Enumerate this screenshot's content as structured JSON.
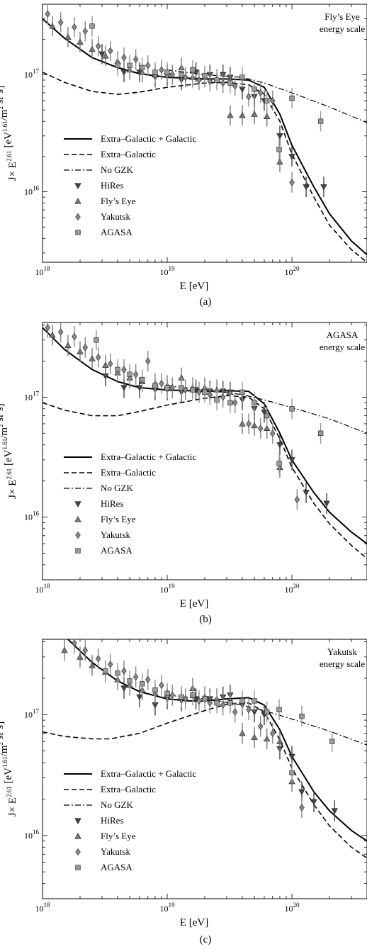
{
  "chart_data": [
    {
      "type": "line",
      "caption": "(a)",
      "note_lines": [
        "Fly’s Eye",
        "energy scale"
      ],
      "xlabel": "E  [eV]",
      "ylabel": "J× E^2.61  [eV^1.61/m^2 sr s]",
      "x_scale": "log",
      "y_scale": "log",
      "xlim": [
        1e+18,
        4e+20
      ],
      "ylim": [
        2500000000000000.0,
        4e+17
      ],
      "x_ticks": [
        1e+18,
        1e+19,
        1e+20
      ],
      "y_ticks": [
        1e+16,
        1e+17
      ],
      "series": [
        {
          "name": "Extra–Galactic + Galactic",
          "style": "solid",
          "x": [
            1e+18,
            1.5e+18,
            2.5e+18,
            4e+18,
            6e+18,
            1e+19,
            2e+19,
            3e+19,
            4.5e+19,
            6e+19,
            8e+19,
            1e+20,
            1.5e+20,
            2e+20,
            3e+20,
            4e+20
          ],
          "y": [
            3e+17,
            2.05e+17,
            1.4e+17,
            1.15e+17,
            1.02e+17,
            9.5e+16,
            9.2e+16,
            9.2e+16,
            9e+16,
            7.8e+16,
            4.6e+16,
            2.5e+16,
            1.1e+16,
            6500000000000000.0,
            3800000000000000.0,
            2900000000000000.0
          ]
        },
        {
          "name": "Extra–Galactic",
          "style": "dashed",
          "x": [
            1e+18,
            1.5e+18,
            2.5e+18,
            4e+18,
            6e+18,
            1e+19,
            2e+19,
            3e+19,
            4.5e+19,
            6e+19,
            8e+19,
            1e+20,
            1.5e+20,
            2e+20,
            3e+20,
            4e+20
          ],
          "y": [
            1.05e+17,
            8.6e+16,
            7.2e+16,
            6.8e+16,
            7.1e+16,
            7.8e+16,
            8.5e+16,
            8.6e+16,
            8.2e+16,
            6.8e+16,
            4e+16,
            2.1e+16,
            9000000000000000.0,
            5200000000000000.0,
            3200000000000000.0,
            2500000000000000.0
          ]
        },
        {
          "name": "No GZK",
          "style": "dashdot",
          "x": [
            1e+19,
            2e+19,
            4e+19,
            6e+19,
            1e+20,
            2e+20,
            4e+20
          ],
          "y": [
            1.1e+17,
            1e+17,
            9.5e+16,
            8.5e+16,
            7e+16,
            5.3e+16,
            3.9e+16
          ]
        }
      ],
      "points": [
        {
          "name": "HiRes",
          "marker": "triangle-down",
          "color": "#444444",
          "x": [
            3e+18,
            4.5e+18,
            6e+18,
            8e+18,
            1e+19,
            1.3e+19,
            1.7e+19,
            2.2e+19,
            2.8e+19,
            3.2e+19,
            4e+19,
            5e+19,
            6e+19,
            8e+19,
            1e+20,
            1.3e+20,
            1.8e+20
          ],
          "y": [
            1.5e+17,
            1.05e+17,
            1.05e+17,
            9.5e+16,
            9.8e+16,
            9e+16,
            1.05e+17,
            1e+17,
            1e+17,
            9.5e+16,
            7.5e+16,
            6.5e+16,
            6e+16,
            3e+16,
            2e+16,
            1.1e+16,
            1.1e+16
          ]
        },
        {
          "name": "Fly’s Eye",
          "marker": "triangle-up",
          "color": "#777777",
          "x": [
            1.2e+18,
            1.6e+18,
            2e+18,
            2.5e+18,
            3.2e+18,
            4e+18,
            5e+18,
            6.3e+18,
            8e+18,
            1e+19,
            1.3e+19,
            1.6e+19,
            2e+19,
            2.5e+19,
            3.2e+19,
            4e+19,
            5e+19,
            6.3e+19,
            8e+19
          ],
          "y": [
            2.6e+17,
            2.1e+17,
            1.9e+17,
            1.65e+17,
            1.45e+17,
            1.3e+17,
            1.1e+17,
            1.05e+17,
            1e+17,
            1e+17,
            1.15e+17,
            9.5e+16,
            9.5e+16,
            9.2e+16,
            4.5e+16,
            4.5e+16,
            4.6e+16,
            4.4e+16,
            1.8e+16
          ]
        },
        {
          "name": "Yakutsk",
          "marker": "diamond",
          "color": "#888888",
          "x": [
            1.1e+18,
            1.4e+18,
            1.8e+18,
            2.2e+18,
            2.8e+18,
            3.5e+18,
            4.5e+18,
            5.6e+18,
            7e+18,
            9e+18,
            1.1e+19,
            1.4e+19,
            1.8e+19,
            2.2e+19,
            2.8e+19,
            3.5e+19,
            4.5e+19,
            5.6e+19,
            7e+19,
            1e+20
          ],
          "y": [
            3.3e+17,
            2.8e+17,
            2.55e+17,
            2.35e+17,
            1.75e+17,
            1.6e+17,
            1.4e+17,
            1.35e+17,
            1.2e+17,
            1.1e+17,
            1e+17,
            9.5e+16,
            9e+16,
            8.8e+16,
            8.5e+16,
            8e+16,
            6.5e+16,
            7e+16,
            6e+16,
            1.2e+16
          ]
        },
        {
          "name": "AGASA",
          "marker": "square",
          "color": "#999999",
          "x": [
            2.5e+18,
            4e+18,
            5e+18,
            6.3e+18,
            8e+18,
            1e+19,
            1.3e+19,
            1.6e+19,
            2e+19,
            2.5e+19,
            3.2e+19,
            4e+19,
            5e+19,
            6.3e+19,
            7.9e+19,
            1e+20,
            1.7e+20
          ],
          "y": [
            2.6e+17,
            1.2e+17,
            1.2e+17,
            1.15e+17,
            1.05e+17,
            1.05e+17,
            1e+17,
            1.1e+17,
            9.8e+16,
            9e+16,
            8.5e+16,
            9.5e+16,
            7.5e+16,
            6e+16,
            2.3e+16,
            6.3e+16,
            4e+16
          ]
        }
      ]
    },
    {
      "type": "line",
      "caption": "(b)",
      "note_lines": [
        "AGASA",
        "energy scale"
      ],
      "xlabel": "E  [eV]",
      "ylabel": "J× E^2.61  [eV^1.61/m^2 sr s]",
      "x_scale": "log",
      "y_scale": "log",
      "xlim": [
        1e+18,
        4e+20
      ],
      "ylim": [
        3000000000000000.0,
        4.2e+17
      ],
      "x_ticks": [
        1e+18,
        1e+19,
        1e+20
      ],
      "y_ticks": [
        1e+16,
        1e+17
      ],
      "series": [
        {
          "name": "Extra–Galactic + Galactic",
          "style": "solid",
          "x": [
            1e+18,
            1.5e+18,
            2.5e+18,
            4e+18,
            6e+18,
            1e+19,
            2e+19,
            3e+19,
            4.5e+19,
            6e+19,
            8e+19,
            1e+20,
            1.5e+20,
            2e+20,
            3e+20,
            4e+20
          ],
          "y": [
            3.8e+17,
            2.5e+17,
            1.7e+17,
            1.35e+17,
            1.2e+17,
            1.15e+17,
            1.12e+17,
            1.13e+17,
            1.12e+17,
            8.8e+16,
            5e+16,
            3e+16,
            1.6e+16,
            1.1e+16,
            7500000000000000.0,
            6000000000000000.0
          ]
        },
        {
          "name": "Extra–Galactic",
          "style": "dashed",
          "x": [
            1e+18,
            1.5e+18,
            2.5e+18,
            4e+18,
            6e+18,
            1e+19,
            2e+19,
            3e+19,
            4.5e+19,
            6e+19,
            8e+19,
            1e+20,
            1.5e+20,
            2e+20,
            3e+20,
            4e+20
          ],
          "y": [
            9e+16,
            7.8e+16,
            7e+16,
            7e+16,
            7.6e+16,
            8.6e+16,
            9.8e+16,
            1.03e+17,
            1e+17,
            8e+16,
            4.5e+16,
            2.6e+16,
            1.3e+16,
            8800000000000000.0,
            5800000000000000.0,
            4500000000000000.0
          ]
        },
        {
          "name": "No GZK",
          "style": "dashdot",
          "x": [
            1e+19,
            2e+19,
            4e+19,
            6e+19,
            1e+20,
            2e+20,
            4e+20
          ],
          "y": [
            1.25e+17,
            1.15e+17,
            1.05e+17,
            9.5e+16,
            8.2e+16,
            6.6e+16,
            5e+16
          ]
        }
      ],
      "points": [
        {
          "name": "HiRes",
          "marker": "triangle-down",
          "color": "#444444",
          "x": [
            3.2e+18,
            4.5e+18,
            6e+18,
            8e+18,
            1e+19,
            1.3e+19,
            1.7e+19,
            2.2e+19,
            2.8e+19,
            3.2e+19,
            4e+19,
            5e+19,
            6e+19,
            8e+19,
            1e+20,
            1.3e+20,
            1.9e+20
          ],
          "y": [
            1.5e+17,
            1.2e+17,
            1.2e+17,
            1.15e+17,
            1.15e+17,
            1.1e+17,
            1.15e+17,
            1.12e+17,
            1.12e+17,
            1.1e+17,
            9.5e+16,
            8e+16,
            7.5e+16,
            4e+16,
            3e+16,
            1.6e+16,
            1.3e+16
          ]
        },
        {
          "name": "Fly’s Eye",
          "marker": "triangle-up",
          "color": "#777777",
          "x": [
            1.2e+18,
            1.6e+18,
            2e+18,
            2.5e+18,
            3.2e+18,
            4e+18,
            5e+18,
            6.3e+18,
            8e+18,
            1e+19,
            1.3e+19,
            1.6e+19,
            2e+19,
            2.5e+19,
            3.2e+19,
            4e+19,
            5e+19,
            6.3e+19,
            8e+19
          ],
          "y": [
            3.3e+17,
            2.7e+17,
            2.4e+17,
            2.1e+17,
            1.85e+17,
            1.6e+17,
            1.45e+17,
            1.35e+17,
            1.3e+17,
            1.25e+17,
            1.45e+17,
            1.2e+17,
            1.2e+17,
            1.15e+17,
            1.1e+17,
            6e+16,
            5.8e+16,
            5.5e+16,
            2.6e+16
          ]
        },
        {
          "name": "Yakutsk",
          "marker": "diamond",
          "color": "#888888",
          "x": [
            1.1e+18,
            1.4e+18,
            1.8e+18,
            2.2e+18,
            2.8e+18,
            3.5e+18,
            4.5e+18,
            5.6e+18,
            7e+18,
            9e+18,
            1.1e+19,
            1.4e+19,
            1.8e+19,
            2.2e+19,
            2.8e+19,
            3.5e+19,
            4.5e+19,
            5.6e+19,
            7e+19,
            1.1e+20
          ],
          "y": [
            3.8e+17,
            3.5e+17,
            3.2e+17,
            2.6e+17,
            2.15e+17,
            1.9e+17,
            1.7e+17,
            1.55e+17,
            2e+17,
            1.3e+17,
            1.2e+17,
            1.15e+17,
            1.1e+17,
            1.05e+17,
            1e+17,
            9e+16,
            6e+16,
            5.5e+16,
            5e+16,
            1.4e+16
          ]
        },
        {
          "name": "AGASA",
          "marker": "square",
          "color": "#999999",
          "x": [
            2.7e+18,
            4e+18,
            5e+18,
            6.3e+18,
            8e+18,
            1e+19,
            1.3e+19,
            1.6e+19,
            2e+19,
            2.5e+19,
            3.2e+19,
            4e+19,
            5e+19,
            6.3e+19,
            7.9e+19,
            1e+20,
            1.7e+20
          ],
          "y": [
            3e+17,
            1.7e+17,
            1.55e+17,
            1.4e+17,
            1.25e+17,
            1.2e+17,
            1.2e+17,
            1.15e+17,
            1.1e+17,
            9.5e+16,
            9e+16,
            1.1e+17,
            9e+16,
            7e+16,
            2.8e+16,
            8e+16,
            5e+16
          ]
        }
      ]
    },
    {
      "type": "line",
      "caption": "(c)",
      "note_lines": [
        "Yakutsk",
        "energy scale"
      ],
      "xlabel": "E  [eV]",
      "ylabel": "J× E^2.61  [eV^1.61/m^2 sr s]",
      "x_scale": "log",
      "y_scale": "log",
      "xlim": [
        1e+18,
        4e+20
      ],
      "ylim": [
        3000000000000000.0,
        4.2e+17
      ],
      "x_ticks": [
        1e+18,
        1e+19,
        1e+20
      ],
      "y_ticks": [
        1e+16,
        1e+17
      ],
      "series": [
        {
          "name": "Extra–Galactic + Galactic",
          "style": "solid",
          "x": [
            1.6e+18,
            2.5e+18,
            4e+18,
            6e+18,
            1e+19,
            1.5e+19,
            2e+19,
            3e+19,
            4.5e+19,
            6e+19,
            8e+19,
            1e+20,
            1.5e+20,
            2e+20,
            3e+20,
            4e+20
          ],
          "y": [
            4.2e+17,
            2.7e+17,
            1.9e+17,
            1.55e+17,
            1.35e+17,
            1.3e+17,
            1.3e+17,
            1.35e+17,
            1.38e+17,
            1.2e+17,
            7.5e+16,
            4.5e+16,
            2.3e+16,
            1.6e+16,
            1.1e+16,
            9000000000000000.0
          ]
        },
        {
          "name": "Extra–Galactic",
          "style": "dashed",
          "x": [
            1e+18,
            1.5e+18,
            2.5e+18,
            3.5e+18,
            6e+18,
            1e+19,
            2e+19,
            3e+19,
            4.5e+19,
            6e+19,
            8e+19,
            1e+20,
            1.5e+20,
            2e+20,
            3e+20,
            4e+20
          ],
          "y": [
            7.2e+16,
            6.6e+16,
            6.3e+16,
            6.3e+16,
            7e+16,
            8.5e+16,
            1.08e+17,
            1.22e+17,
            1.25e+17,
            1.05e+17,
            6.2e+16,
            3.6e+16,
            1.8e+16,
            1.2e+16,
            8000000000000000.0,
            6500000000000000.0
          ]
        },
        {
          "name": "No GZK",
          "style": "dashdot",
          "x": [
            1e+19,
            2e+19,
            4e+19,
            6e+19,
            1e+20,
            2e+20,
            4e+20
          ],
          "y": [
            1.45e+17,
            1.35e+17,
            1.2e+17,
            1.08e+17,
            9.2e+16,
            7.3e+16,
            5.6e+16
          ]
        }
      ],
      "points": [
        {
          "name": "HiRes",
          "marker": "triangle-down",
          "color": "#444444",
          "x": [
            4.5e+18,
            6e+18,
            8e+18,
            1e+19,
            1.3e+19,
            1.7e+19,
            2.2e+19,
            2.8e+19,
            3.2e+19,
            4e+19,
            5e+19,
            6e+19,
            8e+19,
            1e+20,
            1.2e+20,
            1.5e+20,
            2.2e+20
          ],
          "y": [
            1.65e+17,
            1.4e+17,
            1.2e+17,
            1.35e+17,
            1.3e+17,
            1.35e+17,
            1.35e+17,
            1.4e+17,
            1.45e+17,
            1.2e+17,
            1.05e+17,
            1e+17,
            5.2e+16,
            4.5e+16,
            2.3e+16,
            1.9e+16,
            1.6e+16
          ]
        },
        {
          "name": "Fly’s Eye",
          "marker": "triangle-up",
          "color": "#777777",
          "x": [
            1.5e+18,
            2e+18,
            2.5e+18,
            3.2e+18,
            4e+18,
            5e+18,
            6.3e+18,
            8e+18,
            1e+19,
            1.3e+19,
            1.6e+19,
            2e+19,
            2.5e+19,
            3.2e+19,
            4e+19,
            5e+19,
            6.3e+19,
            8e+19,
            1e+20
          ],
          "y": [
            3.4e+17,
            3e+17,
            2.55e+17,
            2.25e+17,
            1.95e+17,
            1.75e+17,
            1.6e+17,
            1.5e+17,
            1.45e+17,
            1.4e+17,
            1.65e+17,
            1.4e+17,
            1.35e+17,
            1.3e+17,
            7e+16,
            6.5e+16,
            6.3e+16,
            6e+16,
            2.8e+16
          ]
        },
        {
          "name": "Yakutsk",
          "marker": "diamond",
          "color": "#888888",
          "x": [
            1.8e+18,
            2.2e+18,
            2.8e+18,
            3.5e+18,
            4.5e+18,
            5.6e+18,
            7e+18,
            9e+18,
            1.1e+19,
            1.4e+19,
            1.8e+19,
            2.2e+19,
            2.8e+19,
            3.5e+19,
            4.5e+19,
            5.6e+19,
            7e+19,
            1.2e+20
          ],
          "y": [
            3.9e+17,
            3.4e+17,
            2.9e+17,
            2.6e+17,
            2.3e+17,
            2.05e+17,
            1.95e+17,
            1.75e+17,
            1.45e+17,
            1.35e+17,
            1.3e+17,
            1.25e+17,
            1.2e+17,
            1.05e+17,
            1.1e+17,
            8e+16,
            7e+16,
            1.7e+16
          ]
        },
        {
          "name": "AGASA",
          "marker": "square",
          "color": "#999999",
          "x": [
            3.2e+18,
            4e+18,
            5e+18,
            6.3e+18,
            8e+18,
            1e+19,
            1.3e+19,
            1.6e+19,
            2e+19,
            2.5e+19,
            3.2e+19,
            4e+19,
            5e+19,
            6.3e+19,
            7.9e+19,
            1e+20,
            1.2e+20,
            2.1e+20
          ],
          "y": [
            2.3e+17,
            2.2e+17,
            1.9e+17,
            1.8e+17,
            1.6e+17,
            1.5e+17,
            1.4e+17,
            1.45e+17,
            1.35e+17,
            1.25e+17,
            1.25e+17,
            1.3e+17,
            1.3e+17,
            1.05e+17,
            1.1e+17,
            3.3e+16,
            9.7e+16,
            6e+16
          ]
        }
      ]
    }
  ]
}
